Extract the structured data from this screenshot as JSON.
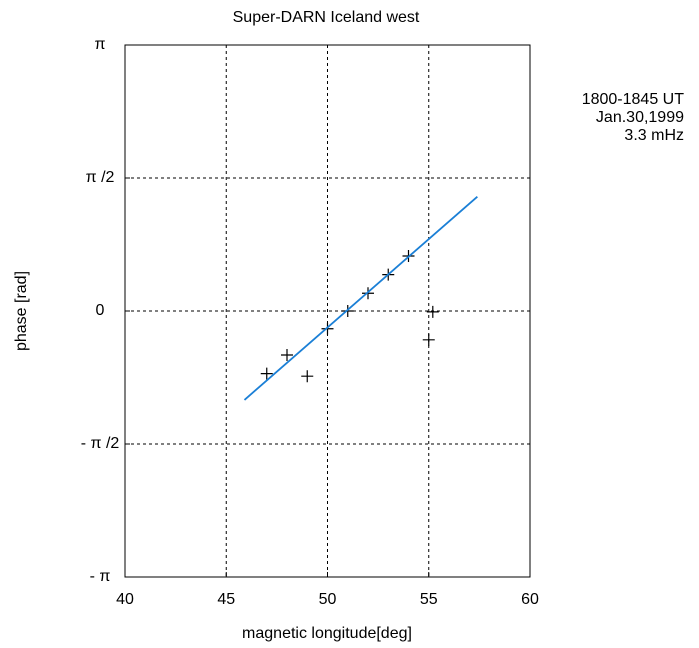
{
  "chart_data": {
    "type": "scatter",
    "title": "Super-DARN  Iceland west",
    "x_label": "magnetic longitude[deg]",
    "y_label": "phase [rad]",
    "annotations": [
      "1800-1845 UT",
      "Jan.30,1999",
      "3.3 mHz"
    ],
    "xlim": [
      40,
      60
    ],
    "xticks": [
      40,
      45,
      50,
      55,
      60
    ],
    "ylim": [
      -3.14159,
      3.14159
    ],
    "yticks": [
      {
        "value": -3.14159,
        "label": "- π"
      },
      {
        "value": -1.5708,
        "label": "- π /2"
      },
      0,
      {
        "value": 1.5708,
        "label": "π /2"
      },
      {
        "value": 3.14159,
        "label": "π"
      }
    ],
    "grid": true,
    "series": [
      {
        "type": "scatter",
        "marker": "+",
        "color": "#000000",
        "x": [
          47,
          48,
          49,
          50,
          51,
          52,
          53,
          54,
          55.2,
          55.0
        ],
        "values": [
          -0.74,
          -0.52,
          -0.77,
          -0.21,
          0.0,
          0.21,
          0.43,
          0.65,
          -0.01,
          -0.34
        ]
      },
      {
        "type": "line",
        "color": "#1a7fd6",
        "x": [
          45.9,
          57.4
        ],
        "values": [
          -1.05,
          1.35
        ]
      }
    ]
  }
}
